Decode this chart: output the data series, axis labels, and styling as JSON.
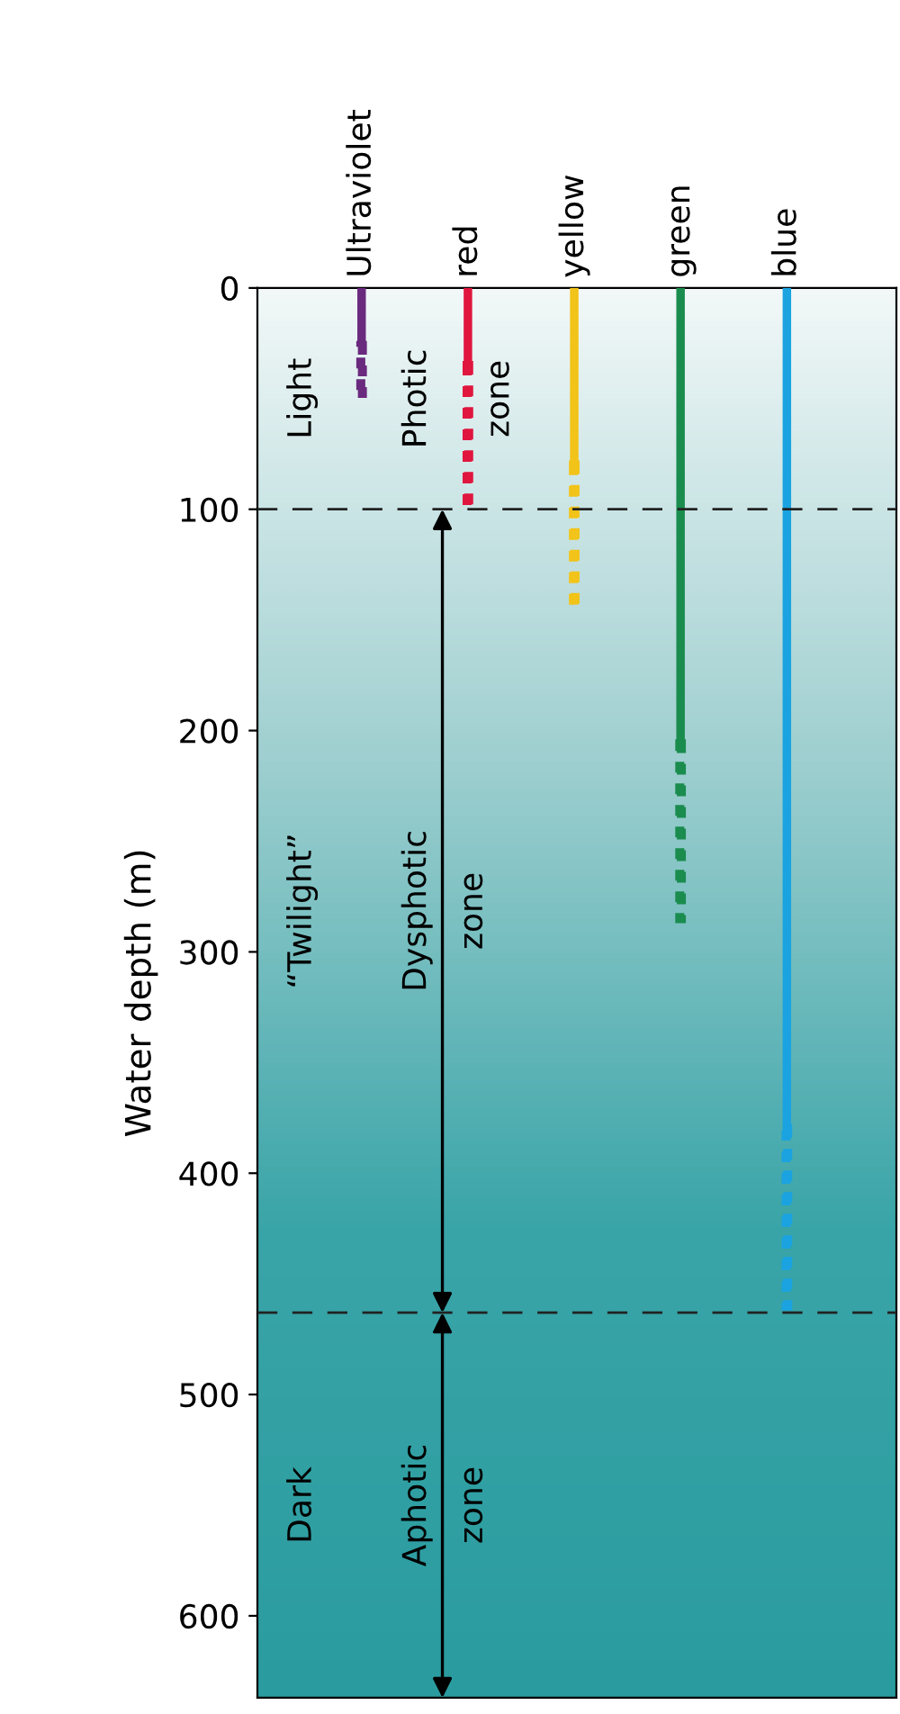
{
  "chart_data": {
    "type": "bar",
    "stacked": true,
    "ylabel": "Water depth (m)",
    "categories": [
      "Ultraviolet",
      "red",
      "yellow",
      "green",
      "blue"
    ],
    "series": [
      {
        "colors": [
          "#6a2a7e",
          "#e0163f",
          "#f2c318",
          "#1a8c4e",
          "#1aa3e0"
        ],
        "values": [
          26,
          35,
          80,
          206,
          380
        ],
        "line_style": "solid"
      },
      {
        "colors": [
          "#6a2a7e",
          "#e0163f",
          "#f2c318",
          "#1a8c4e",
          "#1aa3e0"
        ],
        "values": [
          24,
          65,
          65,
          79,
          80
        ],
        "line_style": "dotted"
      }
    ],
    "ylim": [
      637,
      0
    ],
    "yticks": [
      0,
      100,
      200,
      300,
      400,
      500,
      600
    ],
    "ref_lines": [
      {
        "axis": "y",
        "value": 100,
        "color": "#222222",
        "line_style": "dashed"
      },
      {
        "axis": "y",
        "value": 463,
        "color": "#222222",
        "line_style": "dashed"
      }
    ],
    "annotations": [
      "Light",
      "Photic zone",
      "“Twilight”",
      "Dysphotic zone",
      "Dark",
      "Aphotic zone"
    ],
    "grid": false,
    "legend": false
  }
}
